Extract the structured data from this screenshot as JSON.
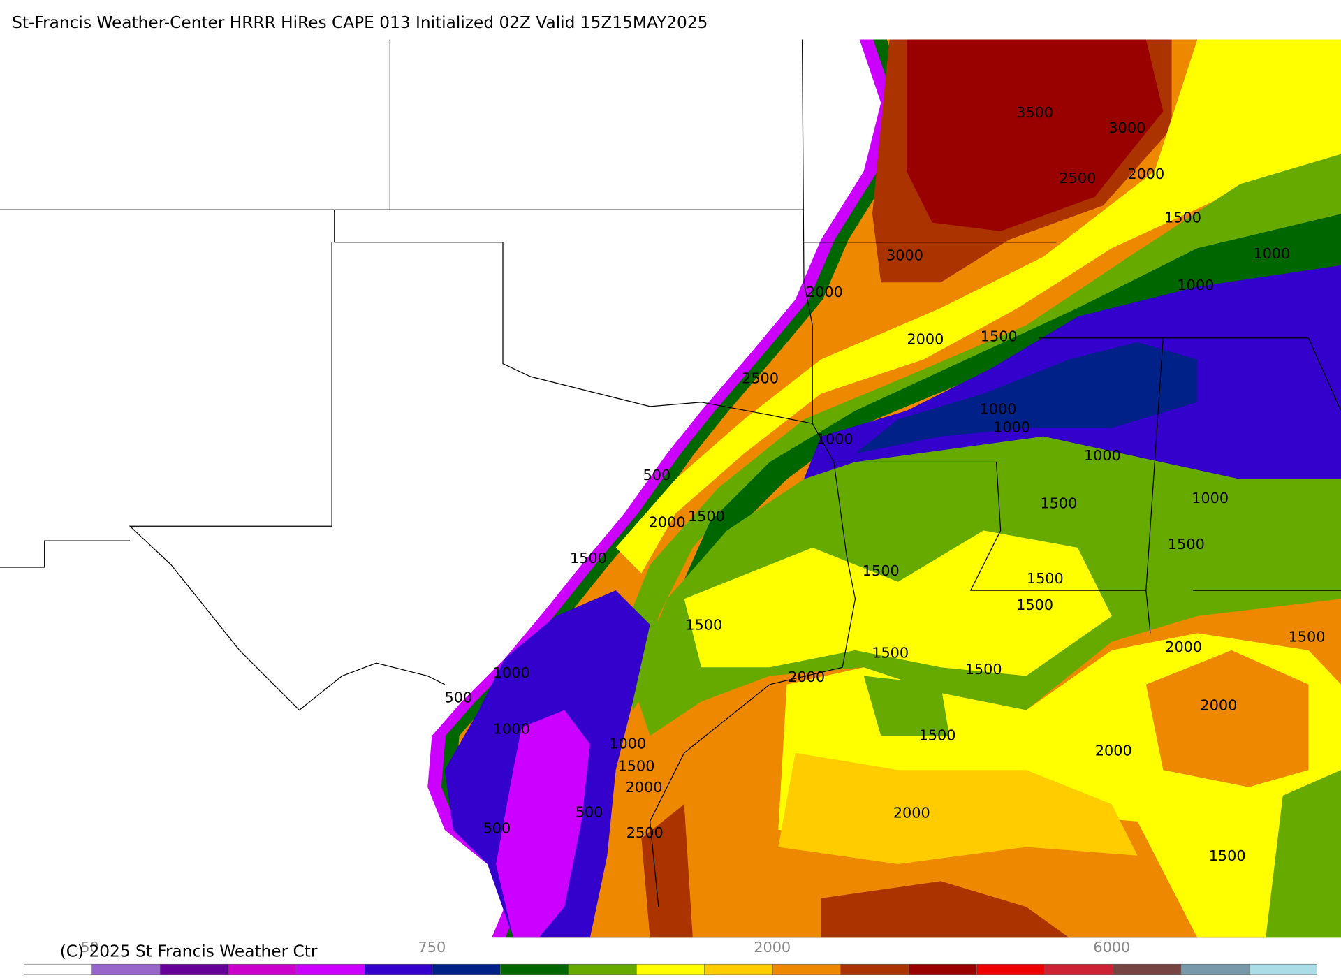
{
  "header": {
    "title": "St-Francis Weather-Center HRRR HiRes CAPE  013 Initialized  02Z Valid 15Z15MAY2025"
  },
  "map": {
    "contour_labels": [
      3500,
      3000,
      2500,
      2000,
      1500,
      3000,
      1000,
      1000,
      2000,
      1500,
      2000,
      2500,
      1000,
      1000,
      1000,
      1000,
      500,
      1000,
      1500,
      2000,
      1500,
      1500,
      1500,
      1500,
      1500,
      1500,
      1500,
      1500,
      2000,
      1500,
      1000,
      2000,
      1500,
      500,
      2000,
      1000,
      1500,
      1000,
      2000,
      1500,
      2000,
      500,
      2000,
      500,
      2500,
      1500
    ]
  },
  "colorbar": {
    "colors": [
      "#ffffff",
      "#9966cc",
      "#660099",
      "#cc00cc",
      "#cc00ff",
      "#3300cc",
      "#002288",
      "#006600",
      "#66aa00",
      "#ffff00",
      "#ffcc00",
      "#ee8800",
      "#aa3300",
      "#990000",
      "#ee0000",
      "#cc2233",
      "#774444",
      "#7799aa",
      "#aadde6"
    ],
    "labels": [
      50,
      750,
      2000,
      6000
    ]
  },
  "footer": {
    "copyright": "(C) 2025 St Francis Weather Ctr"
  }
}
